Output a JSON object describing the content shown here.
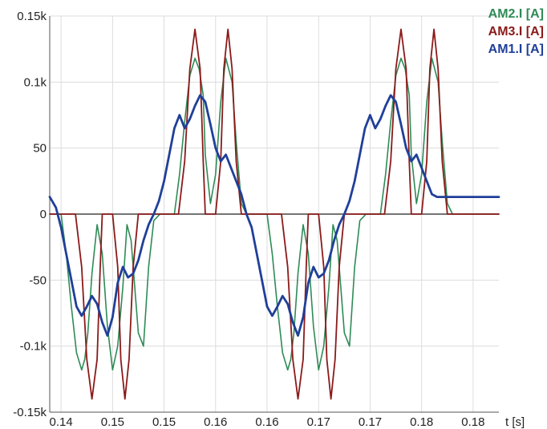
{
  "chart_data": {
    "type": "line",
    "title": "",
    "xlabel": "t [s]",
    "ylabel": "",
    "xlim": [
      0.1389,
      0.1825
    ],
    "ylim": [
      -150,
      150
    ],
    "grid": true,
    "legend_position": "top-right",
    "x_tick_labels": [
      "0.14",
      "0.15",
      "0.15",
      "0.16",
      "0.16",
      "0.17",
      "0.17",
      "0.18",
      "0.18"
    ],
    "x_tick_values": [
      0.14,
      0.145,
      0.15,
      0.155,
      0.16,
      0.165,
      0.17,
      0.175,
      0.18
    ],
    "y_tick_labels": [
      "0.15k",
      "0.1k",
      "50",
      "0",
      "-50",
      "-0.1k",
      "-0.15k"
    ],
    "y_tick_values": [
      150,
      100,
      50,
      0,
      -50,
      -100,
      -150
    ],
    "series": [
      {
        "name": "AM2.I [A]",
        "color": "#2e8b57",
        "x": [
          0.1389,
          0.1395,
          0.14,
          0.1405,
          0.141,
          0.1415,
          0.142,
          0.1423,
          0.1426,
          0.143,
          0.1435,
          0.144,
          0.1445,
          0.145,
          0.1455,
          0.146,
          0.1464,
          0.1468,
          0.147,
          0.1475,
          0.148,
          0.1485,
          0.149,
          0.1496,
          0.15,
          0.1505,
          0.151,
          0.1515,
          0.152,
          0.1525,
          0.153,
          0.1534,
          0.1538,
          0.154,
          0.1545,
          0.155,
          0.1555,
          0.156,
          0.1566,
          0.157,
          0.1575,
          0.158,
          0.1589,
          0.1595,
          0.16,
          0.1605,
          0.161,
          0.1615,
          0.162,
          0.1623,
          0.1626,
          0.163,
          0.1635,
          0.164,
          0.1645,
          0.165,
          0.1655,
          0.166,
          0.1664,
          0.1668,
          0.167,
          0.1675,
          0.168,
          0.1685,
          0.169,
          0.1696,
          0.17,
          0.1705,
          0.171,
          0.1715,
          0.172,
          0.1725,
          0.173,
          0.1734,
          0.1738,
          0.174,
          0.1745,
          0.175,
          0.1755,
          0.176,
          0.1766,
          0.177,
          0.1775,
          0.178,
          0.1825
        ],
        "y": [
          0,
          0,
          0,
          -30,
          -70,
          -105,
          -118,
          -110,
          -90,
          -45,
          -8,
          -30,
          -85,
          -118,
          -100,
          -55,
          -8,
          -20,
          -40,
          -90,
          -100,
          -40,
          -5,
          0,
          0,
          0,
          0,
          30,
          70,
          105,
          118,
          110,
          90,
          45,
          8,
          30,
          85,
          118,
          100,
          55,
          8,
          0,
          0,
          0,
          0,
          -30,
          -70,
          -105,
          -118,
          -110,
          -90,
          -45,
          -8,
          -30,
          -85,
          -118,
          -100,
          -55,
          -8,
          -20,
          -40,
          -90,
          -100,
          -40,
          -5,
          0,
          0,
          0,
          0,
          30,
          70,
          105,
          118,
          110,
          90,
          45,
          8,
          30,
          85,
          118,
          100,
          55,
          8,
          0,
          0
        ]
      },
      {
        "name": "AM3.I [A]",
        "color": "#8b1a1a",
        "x": [
          0.1389,
          0.141,
          0.1414,
          0.142,
          0.1425,
          0.143,
          0.1435,
          0.1438,
          0.144,
          0.1445,
          0.145,
          0.1455,
          0.1458,
          0.1462,
          0.1466,
          0.147,
          0.1475,
          0.148,
          0.1486,
          0.1489,
          0.15,
          0.151,
          0.1514,
          0.152,
          0.1525,
          0.153,
          0.1535,
          0.1538,
          0.154,
          0.1545,
          0.155,
          0.1555,
          0.1558,
          0.1562,
          0.1566,
          0.157,
          0.1575,
          0.158,
          0.1586,
          0.1589,
          0.16,
          0.1614,
          0.162,
          0.1625,
          0.163,
          0.1635,
          0.1638,
          0.164,
          0.1645,
          0.165,
          0.1655,
          0.1658,
          0.1662,
          0.1666,
          0.167,
          0.1675,
          0.168,
          0.1686,
          0.1689,
          0.17,
          0.171,
          0.1714,
          0.172,
          0.1725,
          0.173,
          0.1735,
          0.1738,
          0.174,
          0.1745,
          0.175,
          0.1755,
          0.1758,
          0.1762,
          0.1766,
          0.177,
          0.1775,
          0.178,
          0.1786,
          0.1789,
          0.1825
        ],
        "y": [
          0,
          0,
          0,
          -40,
          -110,
          -140,
          -110,
          -40,
          0,
          0,
          0,
          -40,
          -110,
          -140,
          -110,
          -40,
          0,
          0,
          0,
          0,
          0,
          0,
          0,
          40,
          110,
          140,
          110,
          40,
          0,
          0,
          0,
          40,
          110,
          140,
          110,
          40,
          0,
          0,
          0,
          0,
          0,
          0,
          -40,
          -110,
          -140,
          -110,
          -40,
          0,
          0,
          0,
          -40,
          -110,
          -140,
          -110,
          -40,
          0,
          0,
          0,
          0,
          0,
          0,
          0,
          40,
          110,
          140,
          110,
          40,
          0,
          0,
          0,
          40,
          110,
          140,
          110,
          40,
          0,
          0,
          0,
          0,
          0
        ]
      },
      {
        "name": "AM1.I [A]",
        "color": "#1f3f99",
        "x": [
          0.1389,
          0.1395,
          0.14,
          0.1405,
          0.141,
          0.1415,
          0.142,
          0.1425,
          0.143,
          0.1435,
          0.144,
          0.1445,
          0.145,
          0.1455,
          0.146,
          0.1465,
          0.147,
          0.1475,
          0.148,
          0.1485,
          0.149,
          0.1495,
          0.15,
          0.1505,
          0.151,
          0.1515,
          0.152,
          0.1525,
          0.153,
          0.1535,
          0.154,
          0.1545,
          0.155,
          0.1555,
          0.156,
          0.1565,
          0.157,
          0.1575,
          0.158,
          0.1585,
          0.159,
          0.1595,
          0.16,
          0.1605,
          0.161,
          0.1615,
          0.162,
          0.1625,
          0.163,
          0.1635,
          0.164,
          0.1645,
          0.165,
          0.1655,
          0.166,
          0.1665,
          0.167,
          0.1675,
          0.168,
          0.1685,
          0.169,
          0.1695,
          0.17,
          0.1705,
          0.171,
          0.1715,
          0.172,
          0.1725,
          0.173,
          0.1735,
          0.174,
          0.1745,
          0.175,
          0.1755,
          0.176,
          0.1765,
          0.177,
          0.1775,
          0.178,
          0.1785,
          0.179,
          0.1795,
          0.18,
          0.1805,
          0.181,
          0.1815,
          0.182,
          0.1825
        ],
        "y": [
          13,
          5,
          -10,
          -30,
          -50,
          -70,
          -77,
          -70,
          -62,
          -68,
          -82,
          -92,
          -78,
          -52,
          -40,
          -48,
          -45,
          -35,
          -20,
          -8,
          0,
          10,
          25,
          45,
          65,
          75,
          65,
          72,
          82,
          90,
          85,
          68,
          50,
          40,
          45,
          35,
          25,
          15,
          0,
          -10,
          -30,
          -50,
          -70,
          -77,
          -70,
          -62,
          -68,
          -82,
          -92,
          -78,
          -52,
          -40,
          -48,
          -45,
          -35,
          -20,
          -8,
          0,
          10,
          25,
          45,
          65,
          75,
          65,
          72,
          82,
          90,
          85,
          68,
          50,
          40,
          45,
          35,
          25,
          15,
          13,
          13,
          13,
          13,
          13,
          13,
          13,
          13,
          13,
          13,
          13,
          13,
          13
        ]
      }
    ]
  }
}
